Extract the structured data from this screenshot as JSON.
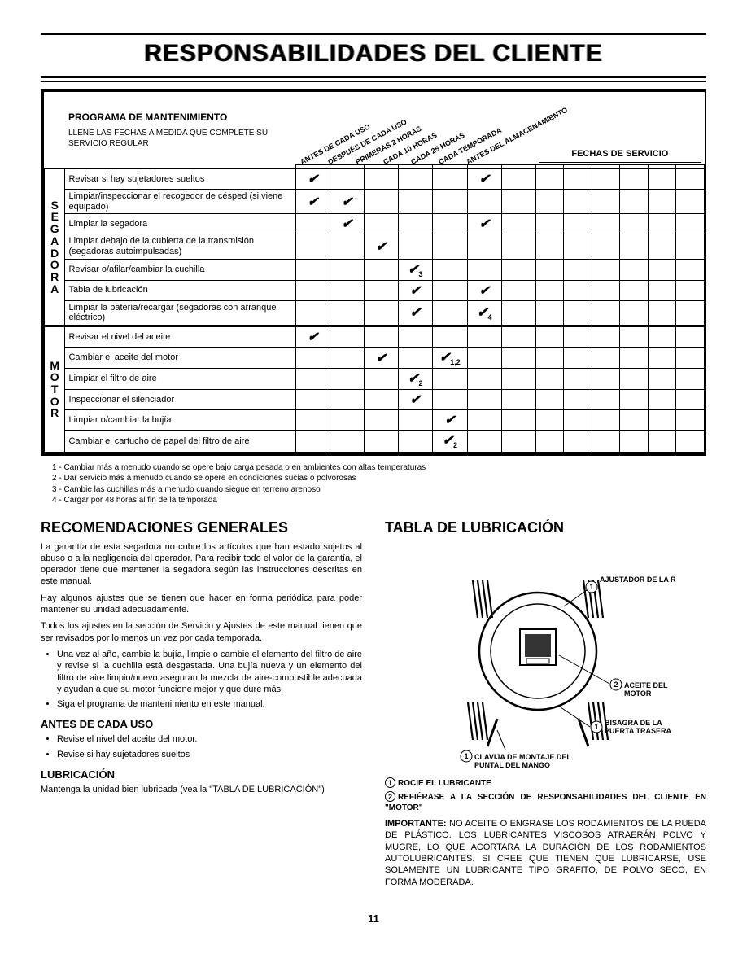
{
  "page_title": "RESPONSABILIDADES DEL CLIENTE",
  "program": {
    "title": "PROGRAMA DE MANTENIMIENTO",
    "subtitle": "LLENE LAS FECHAS A MEDIDA QUE COMPLETE SU SERVICIO REGULAR"
  },
  "diag_headers": [
    "ANTES DE CADA USO",
    "DESPUÉS DE CADA USO",
    "PRIMERAS 2 HORAS",
    "CADA 10 HORAS",
    "CADA 25 HORAS",
    "CADA TEMPORADA",
    "ANTES DEL ALMACENAMIENTO"
  ],
  "service_dates_header": "FECHAS DE SERVICIO",
  "svc_date_cols": 6,
  "groups": [
    {
      "label": "SEGADORA",
      "rows": [
        {
          "task": "Revisar si hay sujetadores sueltos",
          "checks": [
            "✔",
            "",
            "",
            "",
            "",
            "✔",
            ""
          ]
        },
        {
          "task": "Limpiar/inspeccionar el recogedor de césped (si viene equipado)",
          "checks": [
            "✔",
            "✔",
            "",
            "",
            "",
            "",
            ""
          ]
        },
        {
          "task": "Limpiar la segadora",
          "checks": [
            "",
            "✔",
            "",
            "",
            "",
            "✔",
            ""
          ]
        },
        {
          "task": "Limpiar debajo de la cubierta de la transmisión (segadoras autoimpulsadas)",
          "checks": [
            "",
            "",
            "✔",
            "",
            "",
            "",
            ""
          ]
        },
        {
          "task": "Revisar o/afilar/cambiar la cuchilla",
          "checks": [
            "",
            "",
            "",
            "✔₃",
            "",
            "",
            ""
          ]
        },
        {
          "task": "Tabla de lubricación",
          "checks": [
            "",
            "",
            "",
            "✔",
            "",
            "✔",
            ""
          ]
        },
        {
          "task": "Limpiar la batería/recargar (segadoras con arranque eléctrico)",
          "checks": [
            "",
            "",
            "",
            "✔",
            "",
            "✔₄",
            ""
          ]
        }
      ]
    },
    {
      "label": "MOTOR",
      "rows": [
        {
          "task": "Revisar el nivel del aceite",
          "checks": [
            "✔",
            "",
            "",
            "",
            "",
            "",
            ""
          ]
        },
        {
          "task": "Cambiar el aceite del motor",
          "checks": [
            "",
            "",
            "✔",
            "",
            "✔₁,₂",
            "",
            ""
          ]
        },
        {
          "task": "Limpiar el filtro de aire",
          "checks": [
            "",
            "",
            "",
            "✔₂",
            "",
            "",
            ""
          ]
        },
        {
          "task": "Inspeccionar el silenciador",
          "checks": [
            "",
            "",
            "",
            "✔",
            "",
            "",
            ""
          ]
        },
        {
          "task": "Limpiar o/cambiar la bujía",
          "checks": [
            "",
            "",
            "",
            "",
            "✔",
            "",
            ""
          ]
        },
        {
          "task": "Cambiar el cartucho de papel del filtro de aire",
          "checks": [
            "",
            "",
            "",
            "",
            "✔₂",
            "",
            ""
          ]
        }
      ]
    }
  ],
  "footnotes": [
    "1 - Cambiar más a menudo cuando se opere bajo carga pesada o en ambientes con altas temperaturas",
    "2 - Dar servicio más a menudo cuando se opere en condiciones sucias o polvorosas",
    "3 - Cambie las cuchillas más a menudo cuando siegue en terreno arenoso",
    "4 - Cargar por 48 horas al fin de la temporada"
  ],
  "left_col": {
    "h2": "RECOMENDACIONES GENERALES",
    "p1": "La garantía de esta segadora no cubre los artículos que han estado sujetos al abuso o a la negligencia del operador. Para recibir todo el valor de la garantía, el operador tiene que mantener la segadora según las instrucciones descritas en este manual.",
    "p2": "Hay algunos ajustes que se tienen que hacer en forma periódica para poder mantener su unidad adecuadamente.",
    "p3": "Todos los ajustes en la sección de Servicio y Ajustes de este manual tienen que ser revisados por lo menos un vez por cada temporada.",
    "bullets1": [
      "Una vez al año, cambie la bujía, limpie o cambie el elemento del filtro de aire y revise si la cuchilla está desgastada. Una bujía nueva y un elemento del filtro de aire limpio/nuevo aseguran la mezcla de aire-combustible adecuada y ayudan a que su motor funcione mejor y que dure más.",
      "Siga el programa de mantenimiento en este manual."
    ],
    "h3a": "ANTES DE CADA USO",
    "bullets2": [
      "Revise el nivel del aceite del motor.",
      "Revise si hay sujetadores sueltos"
    ],
    "h3b": "LUBRICACIÓN",
    "p4": "Mantenga la unidad bien lubricada (vea la \"TABLA DE LUBRICACIÓN\")"
  },
  "right_col": {
    "h2": "TABLA DE LUBRICACIÓN",
    "callouts": {
      "wheel_adj": "AJUSTADOR DE LA RUEDA",
      "engine_oil": "ACEITE DEL MOTOR",
      "rear_door": "BISAGRA DE LA PUERTA TRASERA",
      "handle_pin": "CLAVIJA DE MONTAJE DEL PUNTAL DEL MANGO"
    },
    "legend1": "ROCIE EL LUBRICANTE",
    "legend2": "REFIÉRASE A LA SECCIÓN DE RESPONSABILIDADES DEL CLIENTE EN \"MOTOR\"",
    "important_lead": "IMPORTANTE:",
    "important_body": "NO ACEITE O ENGRASE LOS RODAMIENTOS DE LA RUEDA DE PLÁSTICO. LOS LUBRICANTES VISCOSOS ATRAERÁN POLVO Y MUGRE, LO QUE ACORTARA LA DURACIÓN DE LOS RODAMIENTOS AUTOLUBRICANTES. SI CREE QUE TIENEN QUE LUBRICARSE, USE SOLAMENTE UN LUBRICANTE TIPO GRAFITO, DE POLVO SECO, EN FORMA MODERADA."
  },
  "page_number": "11",
  "colors": {
    "text": "#000000",
    "bg": "#ffffff",
    "watermark": "#7aa8e8"
  }
}
